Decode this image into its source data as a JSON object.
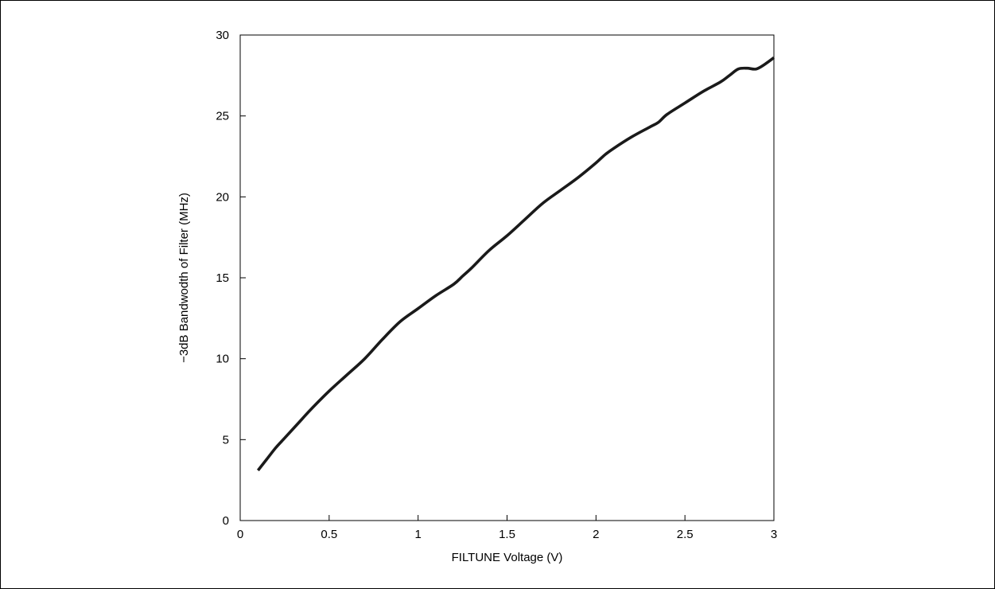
{
  "chart_data": {
    "type": "line",
    "title": "",
    "xlabel": "FILTUNE Voltage (V)",
    "ylabel": "−3dB Bandwodth of Filter (MHz)",
    "xlim": [
      0,
      3
    ],
    "ylim": [
      0,
      30
    ],
    "xticks": [
      0,
      0.5,
      1,
      1.5,
      2,
      2.5,
      3
    ],
    "xtick_labels": [
      "0",
      "0.5",
      "1",
      "1.5",
      "2",
      "2.5",
      "3"
    ],
    "yticks": [
      0,
      5,
      10,
      15,
      20,
      25,
      30
    ],
    "ytick_labels": [
      "0",
      "5",
      "10",
      "15",
      "20",
      "25",
      "30"
    ],
    "grid": false,
    "legend": "none",
    "line_color": "#1a1a1a",
    "series": [
      {
        "x": [
          0.1,
          0.15,
          0.2,
          0.25,
          0.3,
          0.35,
          0.4,
          0.5,
          0.6,
          0.7,
          0.8,
          0.9,
          1.0,
          1.1,
          1.2,
          1.25,
          1.3,
          1.4,
          1.5,
          1.6,
          1.7,
          1.8,
          1.9,
          2.0,
          2.05,
          2.1,
          2.2,
          2.3,
          2.35,
          2.4,
          2.5,
          2.6,
          2.7,
          2.75,
          2.8,
          2.85,
          2.9,
          2.95,
          3.0
        ],
        "y": [
          3.1,
          3.8,
          4.5,
          5.1,
          5.7,
          6.3,
          6.9,
          8.0,
          9.0,
          10.0,
          11.2,
          12.3,
          13.1,
          13.9,
          14.6,
          15.1,
          15.6,
          16.7,
          17.6,
          18.6,
          19.6,
          20.4,
          21.2,
          22.1,
          22.6,
          23.0,
          23.7,
          24.3,
          24.6,
          25.1,
          25.8,
          26.5,
          27.1,
          27.5,
          27.9,
          27.95,
          27.9,
          28.2,
          28.6
        ]
      }
    ]
  }
}
